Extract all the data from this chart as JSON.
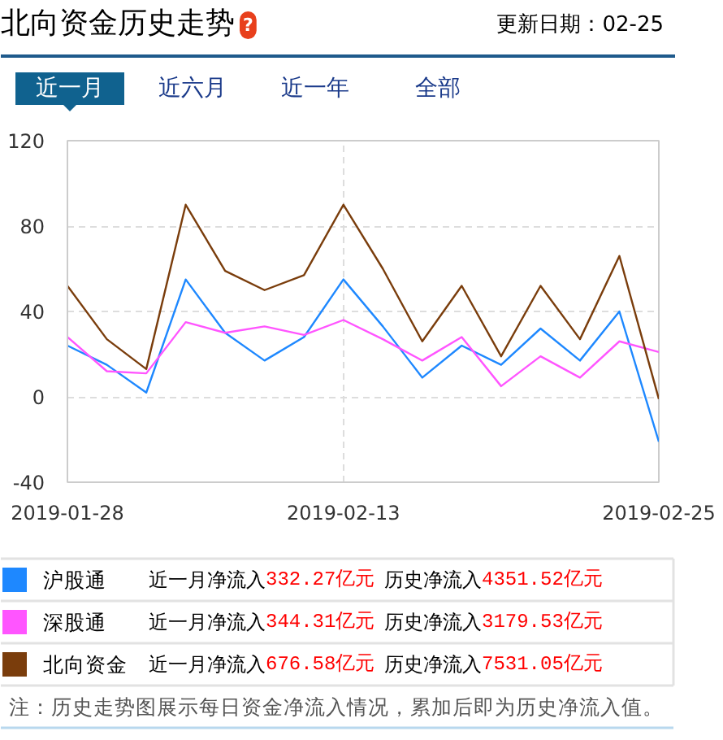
{
  "chart_data": {
    "type": "line",
    "title": "北向资金历史走势",
    "categories": [
      "2019-01-28",
      null,
      null,
      null,
      null,
      null,
      null,
      "2019-02-13",
      null,
      null,
      null,
      null,
      null,
      null,
      null,
      "2019-02-25"
    ],
    "series": [
      {
        "name": "沪股通",
        "color": "#1e88ff",
        "values": [
          24,
          15,
          2,
          55,
          30,
          17,
          28,
          55,
          33,
          9,
          24,
          15,
          32,
          17,
          40,
          -21
        ]
      },
      {
        "name": "深股通",
        "color": "#ff55ff",
        "values": [
          28,
          12,
          11,
          35,
          30,
          33,
          29,
          36,
          27,
          17,
          28,
          5,
          19,
          9,
          26,
          21
        ]
      },
      {
        "name": "北向资金",
        "color": "#7a3d0c",
        "values": [
          52,
          27,
          13,
          90,
          59,
          50,
          57,
          90,
          60,
          26,
          52,
          19,
          52,
          27,
          66,
          -1
        ]
      }
    ],
    "ylim": [
      -40,
      120
    ],
    "yticks": [
      -40,
      0,
      40,
      80,
      120
    ],
    "grid": true,
    "legend": "bottom",
    "annotations": [
      "?",
      "更新日期：02-25",
      "近一月",
      "近六月",
      "近一年",
      "全部",
      "近一月净流入",
      "332.27亿元",
      "历史净流入",
      "4351.52亿元",
      "近一月净流入",
      "344.31亿元",
      "历史净流入",
      "3179.53亿元",
      "近一月净流入",
      "676.58亿元",
      "历史净流入",
      "7531.05亿元",
      "注：历史走势图展示每日资金净流入情况，累加后即为历史净流入值。"
    ]
  }
}
